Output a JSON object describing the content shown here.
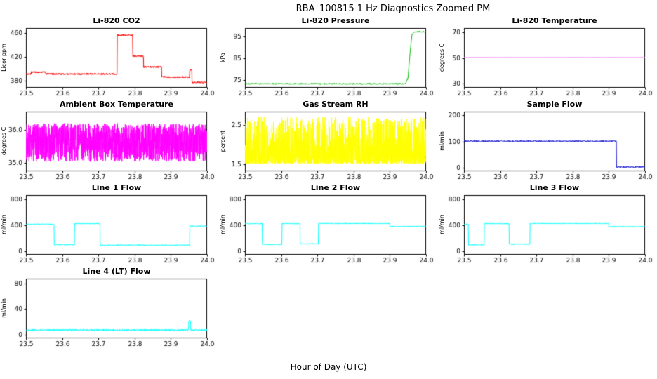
{
  "header": {
    "title": "RBA_100815  1 Hz Diagnostics Zoomed PM"
  },
  "footer": {
    "xlabel": "Hour of Day (UTC)"
  },
  "chart_data": [
    {
      "type": "line",
      "title": "Li-820 CO2",
      "ylabel": "Licor ppm",
      "color": "#ff0000",
      "xlim": [
        23.5,
        24
      ],
      "xtick_vals": [
        23.5,
        23.6,
        23.7,
        23.8,
        23.9,
        24
      ],
      "xtick_labels": [
        "23.5",
        "23.6",
        "23.7",
        "23.8",
        "23.9",
        "24.0"
      ],
      "ylim": [
        368,
        468
      ],
      "ytick_vals": [
        380,
        420,
        460
      ],
      "ytick_labels": [
        "380",
        "420",
        "460"
      ],
      "series": {
        "interp": "step",
        "noise": 1.4,
        "n": 700,
        "points": [
          [
            23.5,
            391
          ],
          [
            23.515,
            394
          ],
          [
            23.555,
            391
          ],
          [
            23.752,
            456
          ],
          [
            23.795,
            421
          ],
          [
            23.825,
            403
          ],
          [
            23.875,
            386
          ],
          [
            23.952,
            398
          ],
          [
            23.958,
            377
          ],
          [
            24,
            377
          ]
        ]
      }
    },
    {
      "type": "line",
      "title": "Li-820 Pressure",
      "ylabel": "kPa",
      "color": "#00bb00",
      "xlim": [
        23.5,
        24
      ],
      "xtick_vals": [
        23.5,
        23.6,
        23.7,
        23.8,
        23.9,
        24
      ],
      "xtick_labels": [
        "23.5",
        "23.6",
        "23.7",
        "23.8",
        "23.9",
        "24.0"
      ],
      "ylim": [
        71.5,
        99
      ],
      "ytick_vals": [
        75,
        85,
        95
      ],
      "ytick_labels": [
        "75",
        "85",
        "95"
      ],
      "series": {
        "interp": "linear",
        "noise": 0.3,
        "n": 700,
        "points": [
          [
            23.5,
            73.3
          ],
          [
            23.943,
            73.3
          ],
          [
            23.95,
            76
          ],
          [
            23.956,
            88
          ],
          [
            23.961,
            96
          ],
          [
            23.968,
            97.3
          ],
          [
            24,
            97.3
          ]
        ]
      }
    },
    {
      "type": "line",
      "title": "Li-820 Temperature",
      "ylabel": "degrees C",
      "color": "#ee82ee",
      "xlim": [
        23.5,
        24
      ],
      "xtick_vals": [
        23.5,
        23.6,
        23.7,
        23.8,
        23.9,
        24
      ],
      "xtick_labels": [
        "23.5",
        "23.6",
        "23.7",
        "23.8",
        "23.9",
        "24.0"
      ],
      "ylim": [
        27,
        73
      ],
      "ytick_vals": [
        30,
        50,
        70
      ],
      "ytick_labels": [
        "30",
        "50",
        "70"
      ],
      "series": {
        "interp": "linear",
        "noise": 0.08,
        "n": 400,
        "points": [
          [
            23.5,
            50.4
          ],
          [
            24,
            50.4
          ]
        ]
      }
    },
    {
      "type": "line",
      "title": "Ambient Box Temperature",
      "ylabel": "degrees C",
      "color": "#ff00ff",
      "xlim": [
        23.5,
        24
      ],
      "xtick_vals": [
        23.5,
        23.6,
        23.7,
        23.8,
        23.9,
        24
      ],
      "xtick_labels": [
        "23.5",
        "23.6",
        "23.7",
        "23.8",
        "23.9",
        "24.0"
      ],
      "ylim": [
        34.75,
        36.55
      ],
      "ytick_vals": [
        35,
        36
      ],
      "ytick_labels": [
        "35.0",
        "36.0"
      ],
      "series": {
        "interp": "linear",
        "noise": 0.58,
        "n": 1600,
        "points": [
          [
            23.5,
            35.62
          ],
          [
            24,
            35.62
          ]
        ]
      }
    },
    {
      "type": "line",
      "title": "Gas Stream RH",
      "ylabel": "percent",
      "color": "#ffff00",
      "xlim": [
        23.5,
        24
      ],
      "xtick_vals": [
        23.5,
        23.6,
        23.7,
        23.8,
        23.9,
        24
      ],
      "xtick_labels": [
        "23.5",
        "23.6",
        "23.7",
        "23.8",
        "23.9",
        "24.0"
      ],
      "ylim": [
        1.32,
        2.85
      ],
      "ytick_vals": [
        1.5,
        2.5
      ],
      "ytick_labels": [
        "1.5",
        "2.5"
      ],
      "series": {
        "interp": "linear",
        "noise": 1.2,
        "spiky": true,
        "spike_pow": 2.4,
        "n": 1600,
        "points": [
          [
            23.5,
            1.52
          ],
          [
            24,
            1.52
          ]
        ]
      }
    },
    {
      "type": "line",
      "title": "Sample Flow",
      "ylabel": "ml/min",
      "color": "#0000cc",
      "xlim": [
        23.5,
        24
      ],
      "xtick_vals": [
        23.5,
        23.6,
        23.7,
        23.8,
        23.9,
        24
      ],
      "xtick_labels": [
        "23.5",
        "23.6",
        "23.7",
        "23.8",
        "23.9",
        "24.0"
      ],
      "ylim": [
        -12,
        212
      ],
      "ytick_vals": [
        0,
        100,
        200
      ],
      "ytick_labels": [
        "0",
        "100",
        "200"
      ],
      "series": {
        "interp": "step",
        "noise": 2.2,
        "n": 800,
        "points": [
          [
            23.5,
            101
          ],
          [
            23.921,
            4
          ],
          [
            24,
            4
          ]
        ]
      }
    },
    {
      "type": "line",
      "title": "Line 1 Flow",
      "ylabel": "ml/min",
      "color": "#00ffff",
      "xlim": [
        23.5,
        24
      ],
      "xtick_vals": [
        23.5,
        23.6,
        23.7,
        23.8,
        23.9,
        24
      ],
      "xtick_labels": [
        "23.5",
        "23.6",
        "23.7",
        "23.8",
        "23.9",
        "24.0"
      ],
      "ylim": [
        -55,
        870
      ],
      "ytick_vals": [
        0,
        400,
        800
      ],
      "ytick_labels": [
        "0",
        "400",
        "800"
      ],
      "series": {
        "interp": "step",
        "noise": 7,
        "n": 800,
        "points": [
          [
            23.5,
            420
          ],
          [
            23.578,
            100
          ],
          [
            23.634,
            428
          ],
          [
            23.705,
            95
          ],
          [
            23.952,
            390
          ],
          [
            24,
            390
          ]
        ]
      }
    },
    {
      "type": "line",
      "title": "Line 2 Flow",
      "ylabel": "ml/min",
      "color": "#00ffff",
      "xlim": [
        23.5,
        24
      ],
      "xtick_vals": [
        23.5,
        23.6,
        23.7,
        23.8,
        23.9,
        24
      ],
      "xtick_labels": [
        "23.5",
        "23.6",
        "23.7",
        "23.8",
        "23.9",
        "24.0"
      ],
      "ylim": [
        -55,
        870
      ],
      "ytick_vals": [
        0,
        400,
        800
      ],
      "ytick_labels": [
        "0",
        "400",
        "800"
      ],
      "series": {
        "interp": "step",
        "noise": 7,
        "n": 800,
        "points": [
          [
            23.5,
            428
          ],
          [
            23.548,
            105
          ],
          [
            23.602,
            428
          ],
          [
            23.652,
            115
          ],
          [
            23.703,
            430
          ],
          [
            23.9,
            385
          ],
          [
            24,
            385
          ]
        ]
      }
    },
    {
      "type": "line",
      "title": "Line 3 Flow",
      "ylabel": "ml/min",
      "color": "#00ffff",
      "xlim": [
        23.5,
        24
      ],
      "xtick_vals": [
        23.5,
        23.6,
        23.7,
        23.8,
        23.9,
        24
      ],
      "xtick_labels": [
        "23.5",
        "23.6",
        "23.7",
        "23.8",
        "23.9",
        "24.0"
      ],
      "ylim": [
        -55,
        870
      ],
      "ytick_vals": [
        0,
        400,
        800
      ],
      "ytick_labels": [
        "0",
        "400",
        "800"
      ],
      "series": {
        "interp": "step",
        "noise": 7,
        "n": 800,
        "points": [
          [
            23.5,
            420
          ],
          [
            23.512,
            100
          ],
          [
            23.556,
            428
          ],
          [
            23.625,
            110
          ],
          [
            23.682,
            430
          ],
          [
            23.9,
            380
          ],
          [
            24,
            380
          ]
        ]
      }
    },
    {
      "type": "line",
      "title": "Line 4 (LT) Flow",
      "ylabel": "ml/min",
      "color": "#00ffff",
      "xlim": [
        23.5,
        24
      ],
      "xtick_vals": [
        23.5,
        23.6,
        23.7,
        23.8,
        23.9,
        24
      ],
      "xtick_labels": [
        "23.5",
        "23.6",
        "23.7",
        "23.8",
        "23.9",
        "24.0"
      ],
      "ylim": [
        -6,
        88
      ],
      "ytick_vals": [
        0,
        40,
        80
      ],
      "ytick_labels": [
        "0",
        "40",
        "80"
      ],
      "series": {
        "interp": "step",
        "noise": 1.3,
        "n": 800,
        "points": [
          [
            23.5,
            7
          ],
          [
            23.944,
            7
          ],
          [
            23.949,
            21
          ],
          [
            23.955,
            7
          ],
          [
            24,
            7
          ]
        ]
      }
    }
  ]
}
